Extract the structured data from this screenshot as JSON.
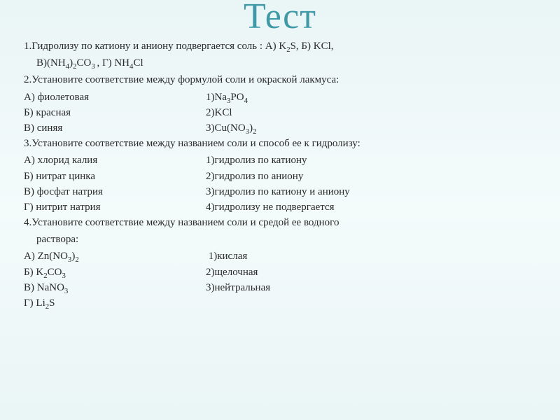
{
  "title": "Тест",
  "q1": {
    "line1": "1.Гидролизу по катиону и аниону подвергается соль : А) K",
    "sub1": "2",
    "line1b": "S, Б) KCl,",
    "line2a": "В)(NH",
    "sub2": "4",
    "line2b": ")",
    "sub3": "2",
    "line2c": "CO",
    "sub4": "3 ",
    "line2d": ", Г) NH",
    "sub5": "4",
    "line2e": "Cl"
  },
  "q2": {
    "stem": "2.Установите соответствие между формулой соли и окраской лакмуса:",
    "a_l": "А) фиолетовая",
    "a_r_a": "1)Na",
    "a_r_s1": "3",
    "a_r_b": "PO",
    "a_r_s2": "4",
    "b_l": "Б) красная",
    "b_r": "2)KCl",
    "c_l": "В) синяя",
    "c_r_a": "3)Cu(NO",
    "c_r_s1": "3",
    "c_r_b": ")",
    "c_r_s2": "2"
  },
  "q3": {
    "stem": "3.Установите соответствие между названием соли и способ ее к гидролизу:",
    "a_l": "А) хлорид калия",
    "a_r": "1)гидролиз по катиону",
    "b_l": "Б) нитрат цинка",
    "b_r": "2)гидролиз по аниону",
    "c_l": "В) фосфат натрия",
    "c_r": "3)гидролиз по катиону и аниону",
    "d_l": "Г) нитрит натрия",
    "d_r": "4)гидролизу не подвергается"
  },
  "q4": {
    "stem1": "4.Установите соответствие между названием соли и средой ее водного",
    "stem2": "раствора:",
    "a_l_a": "А) Zn(NO",
    "a_l_s1": "3",
    "a_l_b": ")",
    "a_l_s2": "2",
    "a_r": "1)кислая",
    "b_l_a": "Б) K",
    "b_l_s1": "2",
    "b_l_b": "CO",
    "b_l_s2": "3",
    "b_r": "2)щелочная",
    "c_l_a": "В) NaNO",
    "c_l_s1": "3",
    "c_r": "3)нейтральная",
    "d_l_a": "Г) Li",
    "d_l_s1": "2",
    "d_l_b": "S"
  },
  "colors": {
    "title": "#3f9aa8",
    "text": "#2a2a2a",
    "bg_top": "#eaf5f6",
    "bg_mid": "#f4fbfb"
  }
}
